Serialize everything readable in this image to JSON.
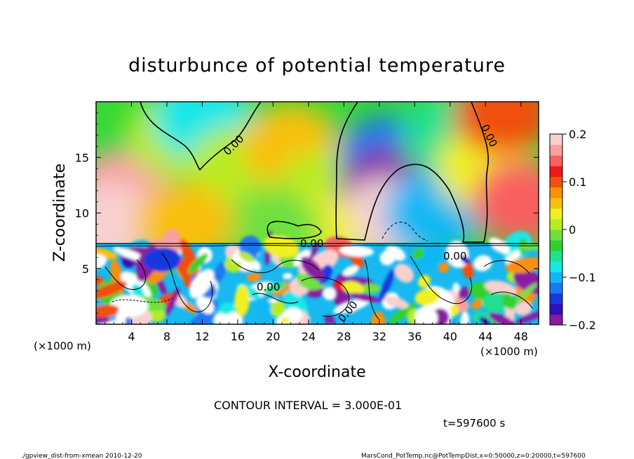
{
  "chart_data": {
    "type": "heatmap",
    "title": "disturbunce of potential temperature",
    "xlabel": "X-coordinate",
    "ylabel": "Z-coordinate",
    "x_unit": "(×1000 m)",
    "y_unit": "(×1000 m)",
    "xlim": [
      0,
      50
    ],
    "ylim": [
      0,
      20
    ],
    "x_ticks": [
      "4",
      "8",
      "12",
      "16",
      "20",
      "24",
      "28",
      "32",
      "36",
      "40",
      "44",
      "48"
    ],
    "x_tick_values": [
      4,
      8,
      12,
      16,
      20,
      24,
      28,
      32,
      36,
      40,
      44,
      48
    ],
    "y_ticks": [
      "5",
      "10",
      "15"
    ],
    "y_tick_values": [
      5,
      10,
      15
    ],
    "colorbar": {
      "min": -0.2,
      "max": 0.2,
      "tick_labels": [
        "0.2",
        "0.1",
        "0",
        "−0.1",
        "−0.2"
      ],
      "tick_values": [
        0.2,
        0.1,
        0,
        -0.1,
        -0.2
      ],
      "colors": [
        "#8a1aa0",
        "#3010b8",
        "#1838e0",
        "#1c78f0",
        "#10b8f4",
        "#18e8e8",
        "#20e090",
        "#30d030",
        "#70e040",
        "#b8ec20",
        "#f0f020",
        "#f8c010",
        "#f89008",
        "#f05010",
        "#f01818",
        "#f86060",
        "#f8a0a0",
        "#f8d0d0"
      ]
    },
    "contour_labels": [
      "0.00",
      "0.00",
      "0.00",
      "0.00",
      "0.00",
      "0.00"
    ],
    "contour_interval_text": "CONTOUR INTERVAL = 3.000E-01",
    "time_text": "t=597600 s",
    "footer_left": "./gpview_dist-from-xmean  2010-12-20",
    "footer_right": "MarsCond_PotTemp.nc@PotTempDist,x=0:50000,z=0:20000,t=597600",
    "fields": [
      {
        "x": 3,
        "z": 12,
        "v": 0.17
      },
      {
        "x": 1.5,
        "z": 9,
        "v": 0.2
      },
      {
        "x": 9,
        "z": 17,
        "v": 0.02
      },
      {
        "x": 12,
        "z": 18.5,
        "v": -0.08
      },
      {
        "x": 16,
        "z": 14,
        "v": 0.0
      },
      {
        "x": 22,
        "z": 16,
        "v": 0.06
      },
      {
        "x": 26,
        "z": 12,
        "v": 0.01
      },
      {
        "x": 33,
        "z": 15,
        "v": -0.12
      },
      {
        "x": 33,
        "z": 12,
        "v": -0.19
      },
      {
        "x": 33,
        "z": 9.5,
        "v": 0.2
      },
      {
        "x": 38,
        "z": 10,
        "v": -0.1
      },
      {
        "x": 40,
        "z": 17,
        "v": -0.05
      },
      {
        "x": 44,
        "z": 14,
        "v": 0.03
      },
      {
        "x": 48,
        "z": 11,
        "v": 0.14
      },
      {
        "x": 46,
        "z": 19,
        "v": 0.1
      },
      {
        "x": 24,
        "z": 8,
        "v": 0.03
      },
      {
        "x": 20,
        "z": 8.5,
        "v": -0.02
      },
      {
        "x": 10,
        "z": 9,
        "v": 0.05
      }
    ]
  }
}
